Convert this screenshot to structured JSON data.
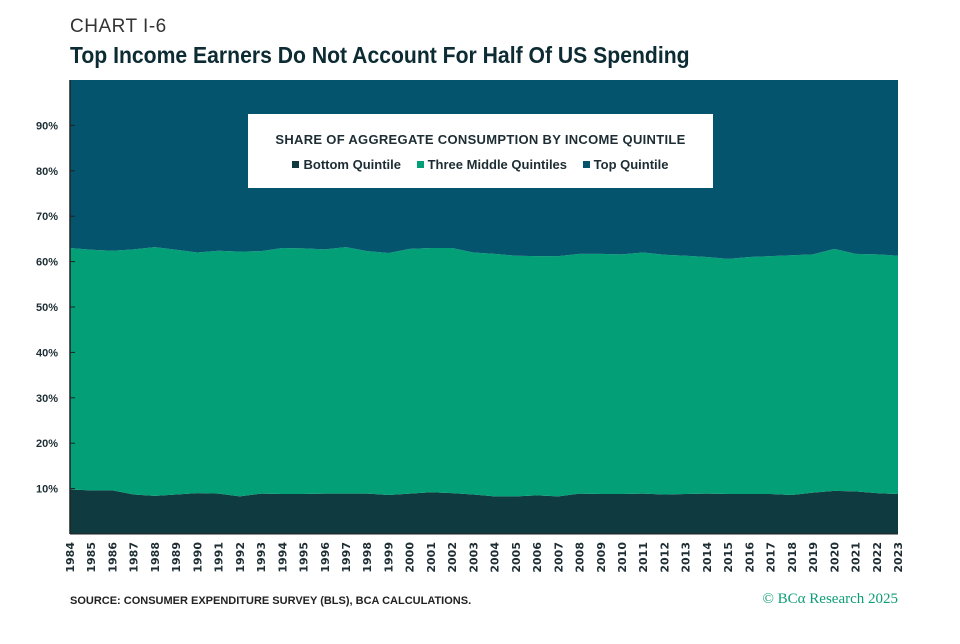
{
  "header": {
    "label": "CHART I-6",
    "title": "Top Income Earners Do Not Account For Half Of US Spending"
  },
  "footer": {
    "source": "SOURCE: CONSUMER EXPENDITURE SURVEY (BLS), BCA CALCULATIONS.",
    "credit": "© BCα Research 2025"
  },
  "chart_data": {
    "type": "area",
    "stacked": true,
    "title": "SHARE OF AGGREGATE CONSUMPTION BY INCOME QUINTILE",
    "xlabel": "",
    "ylabel": "",
    "ylim": [
      0,
      100
    ],
    "yticks": [
      "10%",
      "20%",
      "30%",
      "40%",
      "50%",
      "60%",
      "70%",
      "80%",
      "90%"
    ],
    "ytick_values": [
      10,
      20,
      30,
      40,
      50,
      60,
      70,
      80,
      90
    ],
    "legend_placement": "top-center",
    "x": [
      1984,
      1985,
      1986,
      1987,
      1988,
      1989,
      1990,
      1991,
      1992,
      1993,
      1994,
      1995,
      1996,
      1997,
      1998,
      1999,
      2000,
      2001,
      2002,
      2003,
      2004,
      2005,
      2006,
      2007,
      2008,
      2009,
      2010,
      2011,
      2012,
      2013,
      2014,
      2015,
      2016,
      2017,
      2018,
      2019,
      2020,
      2021,
      2022,
      2023
    ],
    "series": [
      {
        "name": "Bottom Quintile",
        "color": "#0f3a40",
        "values": [
          9.8,
          9.6,
          9.6,
          8.7,
          8.4,
          8.7,
          9.0,
          8.9,
          8.3,
          8.9,
          8.8,
          8.8,
          8.9,
          8.9,
          8.9,
          8.6,
          8.9,
          9.2,
          9.0,
          8.7,
          8.3,
          8.3,
          8.5,
          8.3,
          8.9,
          8.8,
          8.8,
          8.9,
          8.7,
          8.8,
          8.9,
          8.8,
          8.8,
          8.8,
          8.6,
          9.1,
          9.5,
          9.4,
          9.0,
          8.8
        ]
      },
      {
        "name": "Three Middle Quintiles",
        "color": "#03a077",
        "values": [
          53.2,
          53.0,
          52.8,
          54.0,
          54.8,
          53.9,
          53.0,
          53.5,
          53.9,
          53.4,
          54.2,
          54.1,
          53.8,
          54.3,
          53.4,
          53.3,
          53.9,
          53.8,
          54.0,
          53.3,
          53.4,
          53.0,
          52.7,
          52.9,
          52.8,
          52.9,
          52.8,
          53.1,
          52.8,
          52.5,
          52.1,
          51.8,
          52.2,
          52.4,
          52.8,
          52.5,
          53.3,
          52.3,
          52.6,
          52.5
        ]
      },
      {
        "name": "Top Quintile",
        "color": "#04546e",
        "values": [
          37.0,
          37.4,
          37.6,
          37.3,
          36.8,
          37.4,
          38.0,
          37.6,
          37.8,
          37.7,
          37.0,
          37.1,
          37.3,
          36.8,
          37.7,
          38.1,
          37.2,
          37.0,
          37.0,
          38.0,
          38.3,
          38.7,
          38.8,
          38.8,
          38.3,
          38.3,
          38.4,
          38.0,
          38.5,
          38.7,
          39.0,
          39.4,
          39.0,
          38.8,
          38.6,
          38.4,
          37.2,
          38.3,
          38.4,
          38.7
        ]
      }
    ]
  }
}
